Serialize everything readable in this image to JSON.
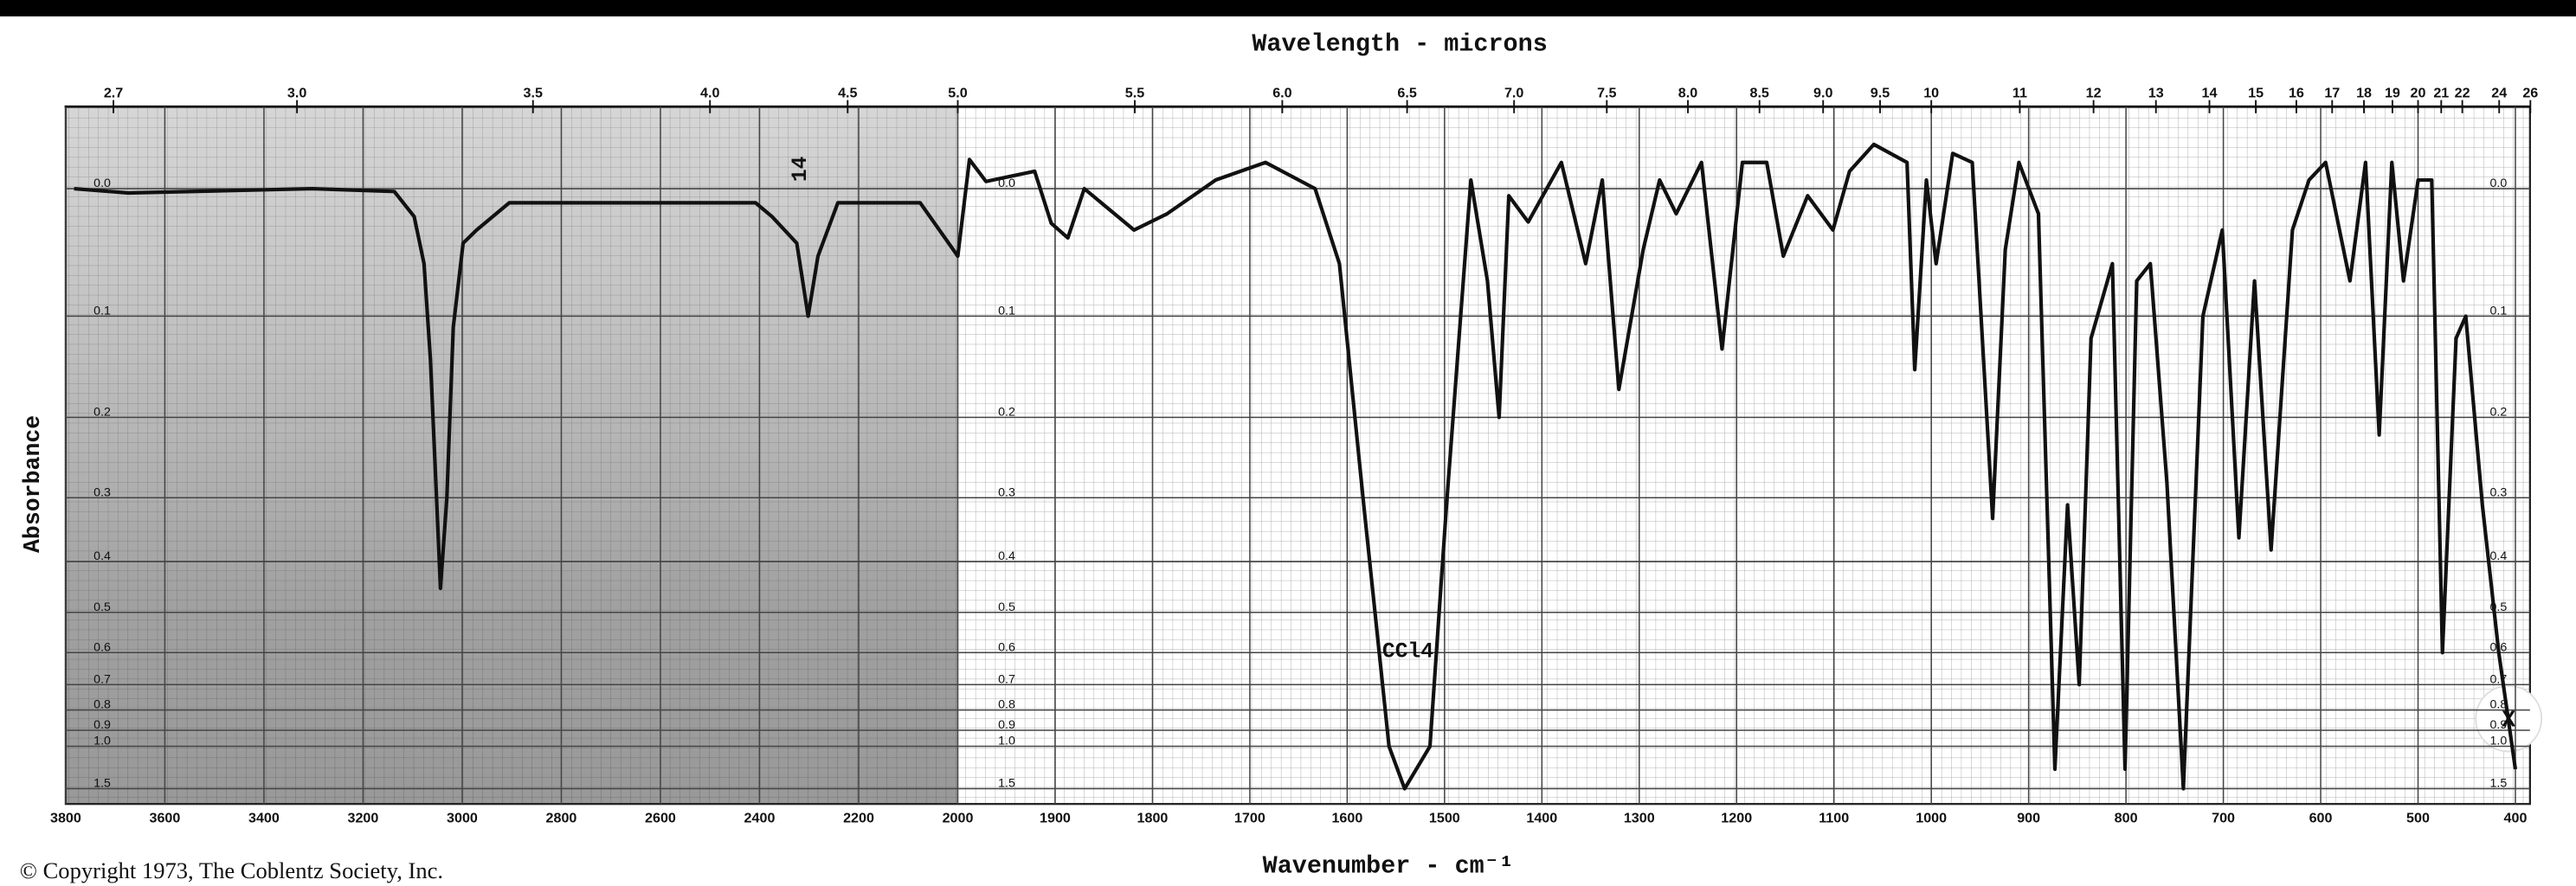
{
  "chart_data": {
    "type": "line",
    "title": "Wavelength - microns",
    "xlabel": "Wavenumber - cm⁻¹",
    "ylabel": "Absorbance",
    "color": "#111111",
    "yscale": "linear-transmittance",
    "grid": true,
    "xlim": [
      3800,
      385
    ],
    "x_scale_change": 2000,
    "xticks": [
      3800,
      3600,
      3400,
      3200,
      3000,
      2800,
      2600,
      2400,
      2200,
      2000,
      1900,
      1800,
      1700,
      1600,
      1500,
      1400,
      1300,
      1200,
      1100,
      1000,
      900,
      800,
      700,
      600,
      500,
      400
    ],
    "x2lim": [
      2.63,
      26
    ],
    "x2ticks": [
      2.7,
      {
        "value": 3,
        "label": "3.0"
      },
      3.5,
      {
        "value": 4,
        "label": "4.0"
      },
      4.5,
      {
        "value": 5,
        "label": "5.0"
      },
      5.5,
      {
        "value": 6,
        "label": "6.0"
      },
      6.5,
      {
        "value": 7,
        "label": "7.0"
      },
      7.5,
      {
        "value": 8,
        "label": "8.0"
      },
      8.5,
      {
        "value": 9,
        "label": "9.0"
      },
      9.5,
      10,
      11,
      12,
      13,
      14,
      15,
      16,
      17,
      18,
      19,
      20,
      21,
      22,
      24,
      26
    ],
    "ylim": [
      -0.054,
      2.16
    ],
    "yticks": [
      {
        "value": 0,
        "label": "0.0"
      },
      0.1,
      0.2,
      0.3,
      0.4,
      0.5,
      0.6,
      0.7,
      0.8,
      0.9,
      {
        "value": 1,
        "label": "1.0"
      },
      1.5
    ],
    "x": [
      3783,
      3674,
      3303,
      3137,
      3097,
      3077,
      3064,
      3051,
      3044,
      3031,
      3018,
      2998,
      2971,
      2905,
      2607,
      2408,
      2375,
      2325,
      2302,
      2282,
      2242,
      2076,
      2000,
      1988,
      1971,
      1921,
      1904,
      1887,
      1870,
      1819,
      1785,
      1735,
      1684,
      1633,
      1608,
      1583,
      1557,
      1541,
      1515,
      1498,
      1473,
      1456,
      1444,
      1434,
      1414,
      1380,
      1355,
      1338,
      1321,
      1296,
      1279,
      1262,
      1236,
      1215,
      1194,
      1169,
      1152,
      1127,
      1101,
      1084,
      1059,
      1025,
      1017,
      1005,
      995,
      978,
      958,
      937,
      924,
      910,
      890,
      873,
      860,
      848,
      836,
      814,
      801,
      789,
      775,
      758,
      741,
      721,
      701,
      684,
      668,
      651,
      629,
      612,
      595,
      570,
      554,
      540,
      527,
      515,
      500,
      486,
      475,
      461,
      451,
      434,
      417,
      400
    ],
    "values": [
      0,
      0.003,
      0,
      0.002,
      0.02,
      0.056,
      0.14,
      0.31,
      0.45,
      0.3,
      0.11,
      0.04,
      0.03,
      0.01,
      0.01,
      0.01,
      0.02,
      0.04,
      0.1,
      0.05,
      0.01,
      0.01,
      0.05,
      -0.02,
      -0.005,
      -0.012,
      0.025,
      0.036,
      0,
      0.03,
      0.018,
      -0.006,
      -0.018,
      0,
      0.056,
      0.31,
      1.0,
      1.5,
      1.0,
      0.31,
      -0.006,
      0.07,
      0.2,
      0.005,
      0.024,
      -0.018,
      0.056,
      -0.006,
      0.17,
      0.045,
      -0.006,
      0.018,
      -0.018,
      0.13,
      -0.018,
      -0.018,
      0.05,
      0.005,
      0.03,
      -0.012,
      -0.03,
      -0.018,
      0.15,
      -0.006,
      0.056,
      -0.024,
      -0.018,
      0.33,
      0.045,
      -0.018,
      0.018,
      1.2,
      0.31,
      0.7,
      0.12,
      0.056,
      1.2,
      0.07,
      0.056,
      0.28,
      1.5,
      0.1,
      0.03,
      0.36,
      0.07,
      0.38,
      0.03,
      -0.006,
      -0.018,
      0.07,
      -0.018,
      0.22,
      -0.018,
      0.07,
      -0.006,
      -0.006,
      0.6,
      0.12,
      0.1,
      0.31,
      0.6,
      1.2
    ],
    "annotations": [
      "CCl4",
      "14"
    ]
  },
  "copyright": "© Copyright 1973, The Coblentz Society, Inc.",
  "close_button": "X"
}
